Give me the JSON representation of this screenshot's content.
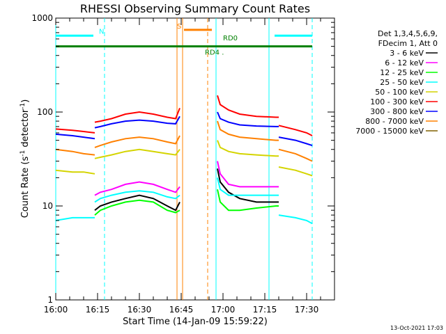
{
  "chart_data": {
    "type": "line",
    "title": "RHESSI Observing Summary Count Rates",
    "xlabel": "Start Time (14-Jan-09 15:59:22)",
    "ylabel_main": "Count Rate (s",
    "ylabel_sup1": "-1",
    "ylabel_mid": " detector",
    "ylabel_sup2": "-1",
    "ylabel_end": ")",
    "ylog": true,
    "ylim": [
      1,
      1000
    ],
    "xlim_min": [
      0,
      100
    ],
    "x_ticks": [
      {
        "t": 0,
        "label": "16:00"
      },
      {
        "t": 15,
        "label": "16:15"
      },
      {
        "t": 30,
        "label": "16:30"
      },
      {
        "t": 45,
        "label": "16:45"
      },
      {
        "t": 60,
        "label": "17:00"
      },
      {
        "t": 75,
        "label": "17:15"
      },
      {
        "t": 90,
        "label": "17:30"
      }
    ],
    "y_ticks": [
      {
        "v": 1,
        "label": "1"
      },
      {
        "v": 10,
        "label": "10"
      },
      {
        "v": 100,
        "label": "100"
      },
      {
        "v": 1000,
        "label": "1000"
      }
    ],
    "legend": {
      "placement": "right",
      "header": [
        "Det 1,3,4,5,6,9,",
        "FDecim 1, Att 0"
      ],
      "entries": [
        {
          "label": "3 - 6 keV",
          "color": "#000000"
        },
        {
          "label": "6 - 12 keV",
          "color": "#ff00ff"
        },
        {
          "label": "12 - 25 keV",
          "color": "#00ff00"
        },
        {
          "label": "25 - 50 keV",
          "color": "#00ffff"
        },
        {
          "label": "50 - 100 keV",
          "color": "#d4d400"
        },
        {
          "label": "100 - 300 keV",
          "color": "#ff0000"
        },
        {
          "label": "300 - 800 keV",
          "color": "#0000ff"
        },
        {
          "label": "800 - 7000 keV",
          "color": "#ff8000"
        },
        {
          "label": "7000 - 15000 keV",
          "color": "#806000"
        }
      ]
    },
    "series": [
      {
        "name": "3 - 6 keV",
        "color": "#000000",
        "segments": [
          [
            [
              14,
              9
            ],
            [
              16,
              10
            ],
            [
              20,
              11
            ],
            [
              25,
              12
            ],
            [
              30,
              13
            ],
            [
              35,
              12
            ],
            [
              40,
              10
            ],
            [
              43,
              9
            ],
            [
              44.5,
              11
            ]
          ],
          [
            [
              58,
              25
            ],
            [
              59,
              18
            ],
            [
              62,
              14
            ],
            [
              66,
              12
            ],
            [
              72,
              11
            ],
            [
              79,
              11
            ],
            [
              80,
              11
            ]
          ]
        ]
      },
      {
        "name": "6 - 12 keV",
        "color": "#ff00ff",
        "segments": [
          [
            [
              14,
              13
            ],
            [
              16,
              14
            ],
            [
              20,
              15
            ],
            [
              25,
              17
            ],
            [
              30,
              18
            ],
            [
              35,
              17
            ],
            [
              40,
              15
            ],
            [
              43,
              14
            ],
            [
              44.5,
              16
            ]
          ],
          [
            [
              58,
              30
            ],
            [
              59,
              22
            ],
            [
              62,
              17
            ],
            [
              66,
              16
            ],
            [
              72,
              16
            ],
            [
              79,
              16
            ],
            [
              80,
              16
            ]
          ]
        ]
      },
      {
        "name": "12 - 25 keV",
        "color": "#00ff00",
        "segments": [
          [
            [
              14,
              8
            ],
            [
              16,
              9
            ],
            [
              20,
              10
            ],
            [
              25,
              11
            ],
            [
              30,
              11.5
            ],
            [
              35,
              11
            ],
            [
              40,
              9
            ],
            [
              43,
              8.5
            ],
            [
              44.5,
              9
            ]
          ],
          [
            [
              58,
              15
            ],
            [
              59,
              11
            ],
            [
              62,
              9
            ],
            [
              66,
              9
            ],
            [
              72,
              9.5
            ],
            [
              79,
              10
            ],
            [
              80,
              10
            ]
          ]
        ]
      },
      {
        "name": "25 - 50 keV",
        "color": "#00ffff",
        "segments": [
          [
            [
              0,
              7
            ],
            [
              6,
              7.5
            ],
            [
              10,
              7.5
            ],
            [
              14,
              7.5
            ]
          ],
          [
            [
              14,
              11
            ],
            [
              16,
              12
            ],
            [
              20,
              13
            ],
            [
              25,
              14
            ],
            [
              30,
              14.5
            ],
            [
              35,
              14
            ],
            [
              40,
              12.5
            ],
            [
              43,
              12
            ],
            [
              44.5,
              13
            ]
          ],
          [
            [
              58,
              20
            ],
            [
              59,
              15
            ],
            [
              62,
              13
            ],
            [
              66,
              13
            ],
            [
              72,
              13
            ],
            [
              79,
              13
            ],
            [
              80,
              13
            ]
          ],
          [
            [
              80,
              8
            ],
            [
              86,
              7.5
            ],
            [
              90,
              7
            ],
            [
              92,
              6.5
            ]
          ]
        ]
      },
      {
        "name": "50 - 100 keV",
        "color": "#d4d400",
        "segments": [
          [
            [
              0,
              24
            ],
            [
              6,
              23
            ],
            [
              10,
              23
            ],
            [
              14,
              22
            ]
          ],
          [
            [
              14,
              32
            ],
            [
              16,
              33
            ],
            [
              20,
              35
            ],
            [
              25,
              38
            ],
            [
              30,
              40
            ],
            [
              35,
              38
            ],
            [
              40,
              36
            ],
            [
              43,
              35
            ],
            [
              44.5,
              40
            ]
          ],
          [
            [
              58,
              50
            ],
            [
              59,
              42
            ],
            [
              62,
              38
            ],
            [
              66,
              36
            ],
            [
              72,
              35
            ],
            [
              79,
              34
            ],
            [
              80,
              34
            ]
          ],
          [
            [
              80,
              26
            ],
            [
              86,
              24
            ],
            [
              90,
              22
            ],
            [
              92,
              21
            ]
          ]
        ]
      },
      {
        "name": "100 - 300 keV",
        "color": "#ff0000",
        "segments": [
          [
            [
              0,
              66
            ],
            [
              6,
              64
            ],
            [
              10,
              62
            ],
            [
              14,
              60
            ]
          ],
          [
            [
              14,
              78
            ],
            [
              16,
              80
            ],
            [
              20,
              85
            ],
            [
              25,
              95
            ],
            [
              30,
              100
            ],
            [
              35,
              95
            ],
            [
              40,
              88
            ],
            [
              43,
              85
            ],
            [
              44.5,
              110
            ]
          ],
          [
            [
              58,
              150
            ],
            [
              59,
              120
            ],
            [
              62,
              105
            ],
            [
              66,
              95
            ],
            [
              72,
              90
            ],
            [
              79,
              88
            ],
            [
              80,
              88
            ]
          ],
          [
            [
              80,
              72
            ],
            [
              86,
              65
            ],
            [
              90,
              60
            ],
            [
              92,
              56
            ]
          ]
        ]
      },
      {
        "name": "300 - 800 keV",
        "color": "#0000ff",
        "segments": [
          [
            [
              0,
              58
            ],
            [
              6,
              56
            ],
            [
              10,
              54
            ],
            [
              14,
              52
            ]
          ],
          [
            [
              14,
              68
            ],
            [
              16,
              70
            ],
            [
              20,
              75
            ],
            [
              25,
              80
            ],
            [
              30,
              82
            ],
            [
              35,
              80
            ],
            [
              40,
              76
            ],
            [
              43,
              75
            ],
            [
              44.5,
              90
            ]
          ],
          [
            [
              58,
              100
            ],
            [
              59,
              85
            ],
            [
              62,
              78
            ],
            [
              66,
              73
            ],
            [
              72,
              71
            ],
            [
              79,
              70
            ],
            [
              80,
              70
            ]
          ],
          [
            [
              80,
              54
            ],
            [
              86,
              50
            ],
            [
              90,
              46
            ],
            [
              92,
              44
            ]
          ]
        ]
      },
      {
        "name": "800 - 7000 keV",
        "color": "#ff8000",
        "segments": [
          [
            [
              0,
              40
            ],
            [
              6,
              38
            ],
            [
              10,
              36
            ],
            [
              14,
              35
            ]
          ],
          [
            [
              14,
              42
            ],
            [
              16,
              44
            ],
            [
              20,
              48
            ],
            [
              25,
              52
            ],
            [
              30,
              54
            ],
            [
              35,
              52
            ],
            [
              40,
              48
            ],
            [
              43,
              46
            ],
            [
              44.5,
              56
            ]
          ],
          [
            [
              58,
              80
            ],
            [
              59,
              65
            ],
            [
              62,
              58
            ],
            [
              66,
              54
            ],
            [
              72,
              52
            ],
            [
              79,
              50
            ],
            [
              80,
              50
            ]
          ],
          [
            [
              80,
              40
            ],
            [
              86,
              36
            ],
            [
              90,
              32
            ],
            [
              92,
              30
            ]
          ]
        ]
      }
    ],
    "attenuator_bars": [
      {
        "label": "N",
        "y": 650,
        "segments": [
          [
            0,
            13.5
          ],
          [
            78.5,
            92
          ]
        ],
        "color": "#00ffff"
      },
      {
        "label": "S",
        "y": 750,
        "segments": [
          [
            46,
            56
          ]
        ],
        "color": "#ff8000"
      },
      {
        "label": "RD4 .",
        "y": 500,
        "segments": [
          [
            0,
            92
          ]
        ],
        "color": "#008000"
      },
      {
        "label": "RD0",
        "y": 560,
        "segments": [],
        "color": "#008000"
      }
    ],
    "vertical_markers": [
      {
        "t": 0,
        "color": "#00ffff",
        "style": "solid"
      },
      {
        "t": 17.5,
        "color": "#00ffff",
        "style": "dashed"
      },
      {
        "t": 43.5,
        "color": "#ff8000",
        "style": "solid"
      },
      {
        "t": 45.5,
        "color": "#ff8000",
        "style": "solid"
      },
      {
        "t": 54.5,
        "color": "#ff8000",
        "style": "dashed"
      },
      {
        "t": 57.5,
        "color": "#00ffff",
        "style": "solid"
      },
      {
        "t": 76.5,
        "color": "#00ffff",
        "style": "solid"
      },
      {
        "t": 92,
        "color": "#00ffff",
        "style": "dashed"
      }
    ],
    "footer_timestamp": "13-Oct-2021 17:03"
  }
}
